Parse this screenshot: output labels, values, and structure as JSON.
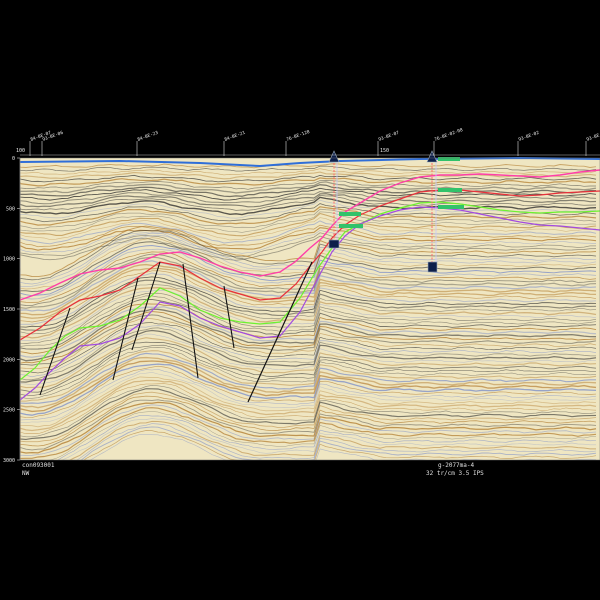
{
  "window": {
    "background": "#000000"
  },
  "section": {
    "background": "#efe6c2",
    "wiggle_dark": "#2a2a2a",
    "wiggle_blue": "#7d8fc8",
    "wiggle_brown": "#b07a2c",
    "seafloor_color": "#2f6ed8"
  },
  "time_axis": {
    "ticks": [
      "0",
      "500",
      "1000",
      "1500",
      "2000",
      "2500",
      "3000"
    ]
  },
  "trace_axis": {
    "start_label": "100",
    "mid_label": "150",
    "crossing_lines": [
      "84-BE-07",
      "93-BE-06",
      "84-BE-23",
      "84-BE-21",
      "76-BE-128",
      "93-BE-07",
      "76-BE-02-08",
      "93-BE-02",
      "93-BE-12"
    ]
  },
  "horizons": [
    {
      "name": "",
      "color": "#ff3ea8"
    },
    {
      "name": "",
      "color": "#e8303a"
    },
    {
      "name": "",
      "color": "#6cf22e"
    },
    {
      "name": "",
      "color": "#a24be0"
    }
  ],
  "faults": {
    "color": "#111111"
  },
  "wells": [
    {
      "marker_color": "#0d1f4a",
      "tag_color": "#31c26a"
    },
    {
      "marker_color": "#0d1f4a",
      "tag_color": "#31c26a"
    }
  ],
  "footer": {
    "line_name": "con093001",
    "direction": "NW",
    "color_map": "g-2077ma-4",
    "display_scale": "32 tr/cm 3.5 IPS"
  }
}
